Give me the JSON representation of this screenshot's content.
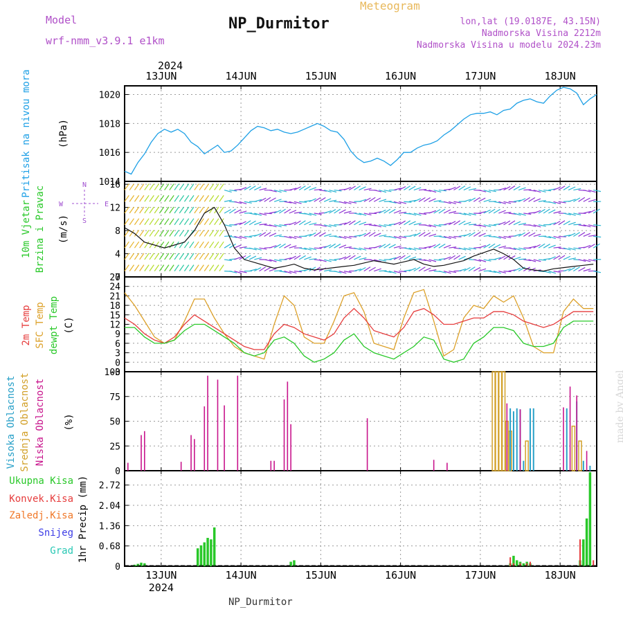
{
  "header": {
    "model_label": "Model",
    "model_name": "wrf-nmm_v3.9.1 e1km",
    "meteogram": "Meteogram",
    "station": "NP_Durmitor",
    "lonlat": "lon,lat (19.0187E, 43.15N)",
    "elevation": "Nadmorska Visina 2212m",
    "model_elevation": "Nadmorska Visina u modelu 2024.23m",
    "footer_station": "NP_Durmitor",
    "credit": "made by Angel",
    "year": "2024"
  },
  "colors": {
    "pressure": "#1ea0e6",
    "t2m": "#e63c3c",
    "sfc": "#dca028",
    "dewpt": "#28c828",
    "high_cloud": "#28a0c8",
    "mid_cloud": "#d2a028",
    "low_cloud": "#c8148c",
    "total_precip": "#28c828",
    "convective": "#e63c3c",
    "frozen": "#f07828",
    "snow": "#3c3ce6",
    "graupel": "#28c8b4"
  },
  "chart_data": [
    {
      "type": "line",
      "name": "pressure-panel",
      "ylabel_left": "Pritisak na nivou mora",
      "ylabel_unit": "(hPa)",
      "ylim": [
        1014,
        1020.6
      ],
      "yticks": [
        1014,
        1016,
        1018,
        1020
      ],
      "xlim": [
        0,
        142
      ],
      "x_start": "2024-06-12T13:00",
      "x_tick_labels": [
        "13JUN",
        "14JUN",
        "15JUN",
        "16JUN",
        "17JUN",
        "18JUN"
      ],
      "x_ticks_hours": [
        11,
        35,
        59,
        83,
        107,
        131
      ],
      "grid": true,
      "series": [
        {
          "key": "pressure",
          "x": [
            0,
            2,
            4,
            6,
            8,
            10,
            12,
            14,
            16,
            18,
            20,
            22,
            24,
            26,
            28,
            30,
            32,
            34,
            36,
            38,
            40,
            42,
            44,
            46,
            48,
            50,
            52,
            54,
            56,
            58,
            60,
            62,
            64,
            66,
            68,
            70,
            72,
            74,
            76,
            78,
            80,
            82,
            84,
            86,
            88,
            90,
            92,
            94,
            96,
            98,
            100,
            102,
            104,
            106,
            108,
            110,
            112,
            114,
            116,
            118,
            120,
            122,
            124,
            126,
            128,
            130,
            132,
            134,
            136,
            138,
            140,
            142
          ],
          "y": [
            1014.7,
            1014.5,
            1015.3,
            1015.9,
            1016.7,
            1017.3,
            1017.6,
            1017.4,
            1017.6,
            1017.3,
            1016.7,
            1016.4,
            1015.9,
            1016.2,
            1016.5,
            1016.0,
            1016.1,
            1016.5,
            1017.0,
            1017.5,
            1017.8,
            1017.7,
            1017.5,
            1017.6,
            1017.4,
            1017.3,
            1017.4,
            1017.6,
            1017.8,
            1018.0,
            1017.8,
            1017.5,
            1017.4,
            1016.9,
            1016.1,
            1015.6,
            1015.3,
            1015.4,
            1015.6,
            1015.4,
            1015.1,
            1015.5,
            1016.0,
            1016.0,
            1016.3,
            1016.5,
            1016.6,
            1016.8,
            1017.2,
            1017.5,
            1017.9,
            1018.3,
            1018.6,
            1018.7,
            1018.7,
            1018.8,
            1018.6,
            1018.9,
            1019.0,
            1019.4,
            1019.6,
            1019.7,
            1019.5,
            1019.4,
            1019.9,
            1020.3,
            1020.5,
            1020.4,
            1020.1,
            1019.3,
            1019.7,
            1020.0
          ]
        }
      ]
    },
    {
      "type": "line",
      "name": "wind-panel",
      "ylabel_left": [
        "10m Vjetar",
        "Brzina i Pravac"
      ],
      "ylabel_unit": "(m/s)",
      "compass": [
        "N",
        "W",
        "S",
        "E"
      ],
      "ylim": [
        0,
        16.5
      ],
      "yticks": [
        0,
        4,
        8,
        12,
        16
      ],
      "xlim": [
        0,
        142
      ],
      "grid": true,
      "series": [
        {
          "key": "wind_speed",
          "x": [
            0,
            3,
            6,
            9,
            12,
            15,
            18,
            21,
            24,
            27,
            30,
            33,
            36,
            39,
            42,
            45,
            48,
            51,
            54,
            57,
            60,
            63,
            66,
            69,
            72,
            75,
            78,
            81,
            84,
            87,
            90,
            93,
            96,
            99,
            102,
            105,
            108,
            111,
            114,
            117,
            120,
            123,
            126,
            129,
            132,
            135,
            138,
            141
          ],
          "y": [
            8.5,
            7.5,
            6.0,
            5.5,
            5.0,
            5.5,
            6.0,
            8.0,
            11.0,
            12.0,
            9.0,
            5.0,
            3.0,
            2.5,
            2.0,
            1.5,
            1.8,
            2.2,
            1.5,
            1.2,
            1.4,
            1.6,
            1.8,
            2.0,
            2.4,
            2.8,
            2.5,
            2.2,
            2.6,
            3.0,
            2.2,
            1.8,
            2.0,
            2.4,
            2.8,
            3.6,
            4.2,
            4.8,
            4.0,
            3.0,
            1.5,
            1.2,
            1.0,
            1.4,
            1.6,
            1.8,
            2.0,
            2.2
          ]
        }
      ]
    },
    {
      "type": "line",
      "name": "temperature-panel",
      "ylabel_left": [
        "2m Temp",
        "SFC Temp",
        "dewpt Temp"
      ],
      "ylabel_unit": "(C)",
      "ylim": [
        -3,
        27
      ],
      "yticks": [
        -3,
        0,
        3,
        6,
        9,
        12,
        15,
        18,
        21,
        24,
        27
      ],
      "xlim": [
        0,
        142
      ],
      "grid": true,
      "series": [
        {
          "key": "sfc",
          "x": [
            0,
            3,
            6,
            9,
            12,
            15,
            18,
            21,
            24,
            27,
            30,
            33,
            36,
            39,
            42,
            45,
            48,
            51,
            54,
            57,
            60,
            63,
            66,
            69,
            72,
            75,
            78,
            81,
            84,
            87,
            90,
            93,
            96,
            99,
            102,
            105,
            108,
            111,
            114,
            117,
            120,
            123,
            126,
            129,
            132,
            135,
            138,
            141
          ],
          "y": [
            22,
            18,
            13,
            8,
            6,
            7,
            13,
            20,
            20,
            14,
            9,
            5,
            3,
            2,
            1,
            12,
            21,
            18,
            8,
            6,
            6,
            13,
            21,
            22,
            16,
            6,
            5,
            4,
            14,
            22,
            23,
            13,
            2,
            4,
            14,
            18,
            17,
            21,
            19,
            21,
            14,
            5,
            3,
            3,
            16,
            20,
            17,
            17
          ]
        },
        {
          "key": "t2m",
          "x": [
            0,
            3,
            6,
            9,
            12,
            15,
            18,
            21,
            24,
            27,
            30,
            33,
            36,
            39,
            42,
            45,
            48,
            51,
            54,
            57,
            60,
            63,
            66,
            69,
            72,
            75,
            78,
            81,
            84,
            87,
            90,
            93,
            96,
            99,
            102,
            105,
            108,
            111,
            114,
            117,
            120,
            123,
            126,
            129,
            132,
            135,
            138,
            141
          ],
          "y": [
            14,
            12,
            9,
            7,
            6,
            8,
            12,
            15,
            13,
            11,
            9,
            7,
            5,
            4,
            4,
            9,
            12,
            11,
            9,
            8,
            7,
            9,
            14,
            17,
            14,
            10,
            9,
            8,
            11,
            16,
            17,
            15,
            12,
            12,
            13,
            14,
            14,
            16,
            16,
            15,
            13,
            12,
            11,
            12,
            14,
            16,
            16,
            16
          ]
        },
        {
          "key": "dewpt",
          "x": [
            0,
            3,
            6,
            9,
            12,
            15,
            18,
            21,
            24,
            27,
            30,
            33,
            36,
            39,
            42,
            45,
            48,
            51,
            54,
            57,
            60,
            63,
            66,
            69,
            72,
            75,
            78,
            81,
            84,
            87,
            90,
            93,
            96,
            99,
            102,
            105,
            108,
            111,
            114,
            117,
            120,
            123,
            126,
            129,
            132,
            135,
            138,
            141
          ],
          "y": [
            11,
            11,
            8,
            6,
            6,
            7,
            10,
            12,
            12,
            10,
            8,
            6,
            3,
            2,
            3,
            7,
            8,
            6,
            2,
            0,
            1,
            3,
            7,
            9,
            5,
            3,
            2,
            1,
            3,
            5,
            8,
            7,
            1,
            0,
            1,
            6,
            8,
            11,
            11,
            10,
            6,
            5,
            5,
            6,
            11,
            13,
            13,
            13
          ]
        }
      ]
    },
    {
      "type": "bar",
      "name": "cloud-panel",
      "ylabel_left": [
        "Visoka Oblacnost",
        "Srednja Oblacnost",
        "Niska Oblacnost"
      ],
      "ylabel_unit": "(%)",
      "ylim": [
        0,
        100
      ],
      "yticks": [
        0,
        25,
        50,
        75,
        100
      ],
      "xlim": [
        0,
        142
      ],
      "grid": true,
      "series": [
        {
          "key": "low_cloud",
          "x": [
            1,
            5,
            6,
            17,
            20,
            21,
            24,
            25,
            28,
            30,
            34,
            44,
            45,
            48,
            49,
            50,
            73,
            93,
            97,
            115,
            119,
            132,
            134,
            136,
            139
          ],
          "y": [
            8,
            36,
            40,
            9,
            36,
            32,
            65,
            96,
            92,
            66,
            96,
            10,
            10,
            72,
            90,
            47,
            53,
            11,
            8,
            68,
            62,
            64,
            85,
            76,
            20
          ]
        },
        {
          "key": "mid_cloud",
          "x": [
            111,
            112,
            113,
            114,
            115,
            116,
            121,
            135,
            137
          ],
          "y": [
            100,
            100,
            100,
            100,
            50,
            40,
            30,
            45,
            30
          ]
        },
        {
          "key": "high_cloud",
          "x": [
            116,
            117,
            118,
            119,
            120,
            122,
            123,
            133,
            136,
            138,
            140
          ],
          "y": [
            63,
            60,
            63,
            62,
            10,
            63,
            63,
            63,
            70,
            10,
            5
          ]
        }
      ]
    },
    {
      "type": "bar",
      "name": "precip-panel",
      "ylabel_left": [
        "Ukupna Kisa",
        "Konvek.Kisa",
        "Zaledj.Kisa",
        "Snijeg",
        "Grad"
      ],
      "ylabel_unit": "1hr Precip (mm)",
      "ylim": [
        0,
        3.2
      ],
      "yticks": [
        0,
        0.68,
        1.36,
        2.04,
        2.72
      ],
      "ytick_labels": [
        "0",
        "0.68",
        "1.36",
        "2.04",
        "2.72"
      ],
      "xlim": [
        0,
        142
      ],
      "x_bottom_labels": [
        "13JUN",
        "14JUN",
        "15JUN",
        "16JUN",
        "17JUN",
        "18JUN"
      ],
      "grid": true,
      "series": [
        {
          "key": "total_precip",
          "x": [
            3,
            4,
            5,
            6,
            22,
            23,
            24,
            25,
            26,
            27,
            50,
            51,
            116,
            117,
            118,
            119,
            120,
            121,
            122,
            137,
            138,
            139,
            140
          ],
          "y": [
            0.05,
            0.08,
            0.12,
            0.1,
            0.6,
            0.7,
            0.8,
            0.95,
            0.9,
            1.3,
            0.15,
            0.2,
            0.1,
            0.35,
            0.2,
            0.15,
            0.1,
            0.15,
            0.1,
            0.2,
            0.9,
            1.6,
            3.15
          ]
        },
        {
          "key": "convective",
          "x": [
            116,
            117,
            119,
            121,
            122,
            137,
            141
          ],
          "y": [
            0.3,
            0.1,
            0.1,
            0.1,
            0.15,
            0.9,
            0.2
          ]
        }
      ]
    }
  ]
}
